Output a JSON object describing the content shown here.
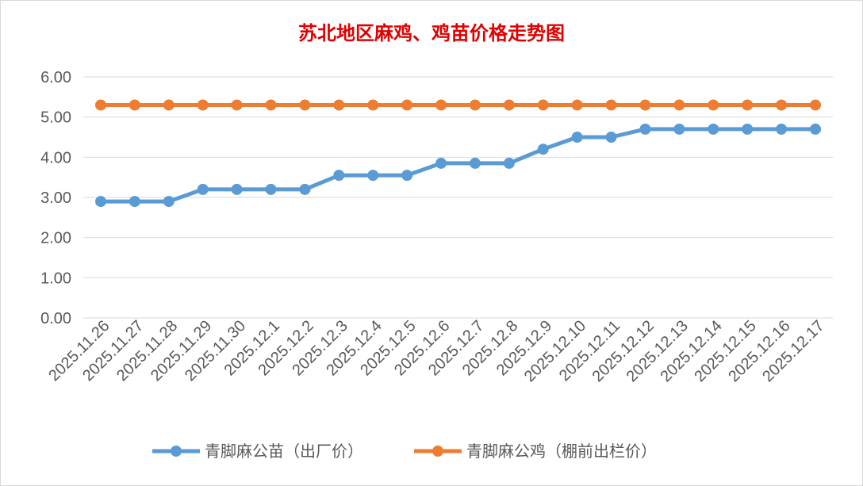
{
  "chart_data": {
    "type": "line",
    "title": "苏北地区麻鸡、鸡苗价格走势图",
    "xlabel": "",
    "ylabel": "",
    "ylim": [
      0,
      6
    ],
    "yticks": [
      "0.00",
      "1.00",
      "2.00",
      "3.00",
      "4.00",
      "5.00",
      "6.00"
    ],
    "grid": true,
    "legend_position": "bottom",
    "categories": [
      "2025.11.26",
      "2025.11.27",
      "2025.11.28",
      "2025.11.29",
      "2025.11.30",
      "2025.12.1",
      "2025.12.2",
      "2025.12.3",
      "2025.12.4",
      "2025.12.5",
      "2025.12.6",
      "2025.12.7",
      "2025.12.8",
      "2025.12.9",
      "2025.12.10",
      "2025.12.11",
      "2025.12.12",
      "2025.12.13",
      "2025.12.14",
      "2025.12.15",
      "2025.12.16",
      "2025.12.17"
    ],
    "series": [
      {
        "name": "青脚麻公苗（出厂价）",
        "color": "#5b9bd5",
        "values": [
          2.9,
          2.9,
          2.9,
          3.2,
          3.2,
          3.2,
          3.2,
          3.55,
          3.55,
          3.55,
          3.85,
          3.85,
          3.85,
          4.2,
          4.5,
          4.5,
          4.7,
          4.7,
          4.7,
          4.7,
          4.7,
          4.7
        ]
      },
      {
        "name": "青脚麻公鸡（棚前出栏价）",
        "color": "#ed7d31",
        "values": [
          5.3,
          5.3,
          5.3,
          5.3,
          5.3,
          5.3,
          5.3,
          5.3,
          5.3,
          5.3,
          5.3,
          5.3,
          5.3,
          5.3,
          5.3,
          5.3,
          5.3,
          5.3,
          5.3,
          5.3,
          5.3,
          5.3
        ]
      }
    ]
  }
}
